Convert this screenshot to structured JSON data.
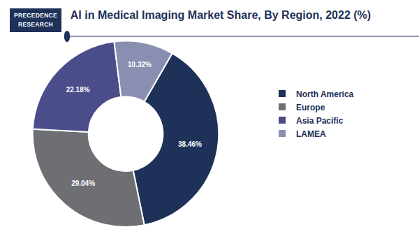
{
  "logo": {
    "lines": [
      "PRECEDENCE",
      "RESEARCH"
    ]
  },
  "chart_data": {
    "type": "pie",
    "title": "AI in Medical Imaging Market Share, By Region, 2022 (%)",
    "categories": [
      "North America",
      "Europe",
      "Asia Pacific",
      "LAMEA"
    ],
    "values": [
      38.46,
      29.04,
      22.18,
      10.32
    ],
    "value_labels": [
      "38.46%",
      "29.04%",
      "22.18%",
      "10.32%"
    ],
    "colors": [
      "#1e3158",
      "#6d6f73",
      "#4a4d8a",
      "#8a8eb0"
    ],
    "data_labels": true,
    "legend": "right"
  }
}
